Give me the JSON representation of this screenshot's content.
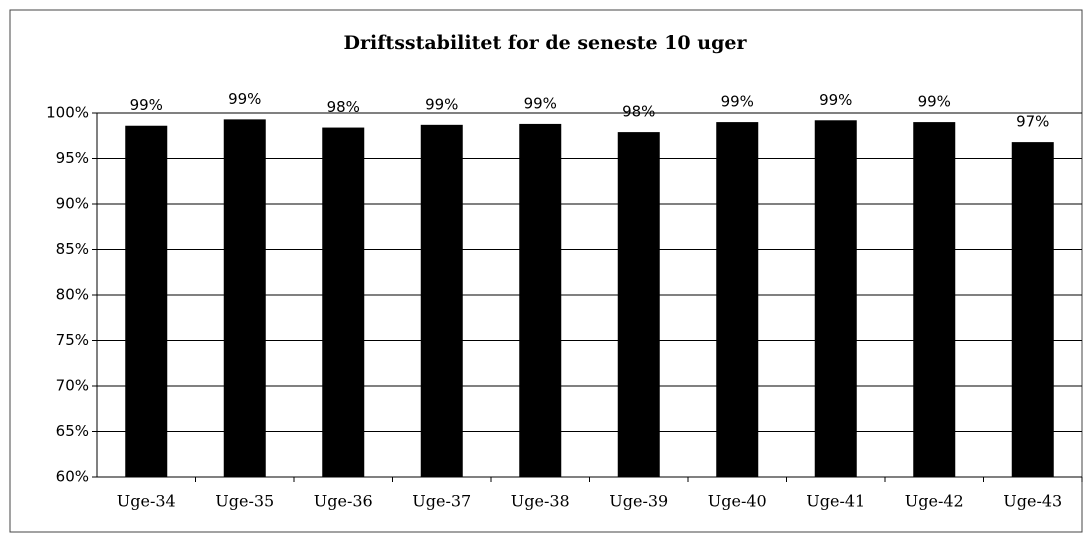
{
  "chart_data": {
    "type": "bar",
    "title": "Driftsstabilitet for de seneste 10 uger",
    "categories": [
      "Uge-34",
      "Uge-35",
      "Uge-36",
      "Uge-37",
      "Uge-38",
      "Uge-39",
      "Uge-40",
      "Uge-41",
      "Uge-42",
      "Uge-43"
    ],
    "values": [
      98.6,
      99.3,
      98.4,
      98.7,
      98.8,
      97.9,
      99.0,
      99.2,
      99.0,
      96.8
    ],
    "value_labels": [
      "99%",
      "99%",
      "98%",
      "99%",
      "99%",
      "98%",
      "99%",
      "99%",
      "99%",
      "97%"
    ],
    "color": "#000000",
    "ylim": [
      60,
      100
    ],
    "yticks": [
      {
        "value": 60,
        "label": "60%"
      },
      {
        "value": 65,
        "label": "65%"
      },
      {
        "value": 70,
        "label": "70%"
      },
      {
        "value": 75,
        "label": "75%"
      },
      {
        "value": 80,
        "label": "80%"
      },
      {
        "value": 85,
        "label": "85%"
      },
      {
        "value": 90,
        "label": "90%"
      },
      {
        "value": 95,
        "label": "95%"
      },
      {
        "value": 100,
        "label": "100%"
      }
    ],
    "grid": true
  }
}
